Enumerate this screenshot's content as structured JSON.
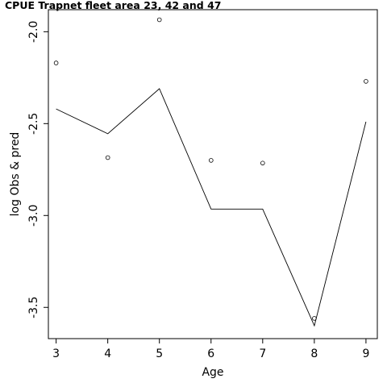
{
  "chart_data": {
    "type": "line",
    "title": "CPUE Trapnet fleet area 23, 42 and 47",
    "xlabel": "Age",
    "ylabel": "log Obs & pred",
    "x": [
      3,
      4,
      5,
      6,
      7,
      8,
      9
    ],
    "xlim": [
      2.85,
      9.22
    ],
    "ylim": [
      -3.67,
      -1.88
    ],
    "x_ticks": [
      3,
      4,
      5,
      6,
      7,
      8,
      9
    ],
    "y_ticks": [
      -2.0,
      -2.5,
      -3.0,
      -3.5
    ],
    "x_tick_labels": [
      "3",
      "4",
      "5",
      "6",
      "7",
      "8",
      "9"
    ],
    "y_tick_labels": [
      "-2.0",
      "-2.5",
      "-3.0",
      "-3.5"
    ],
    "grid": false,
    "series": [
      {
        "style": "points",
        "values": [
          -2.17,
          -2.685,
          -1.935,
          -2.7,
          -2.715,
          -3.56,
          -2.27
        ]
      },
      {
        "style": "line",
        "values": [
          -2.42,
          -2.555,
          -2.31,
          -2.965,
          -2.965,
          -3.6,
          -2.49
        ]
      }
    ]
  }
}
